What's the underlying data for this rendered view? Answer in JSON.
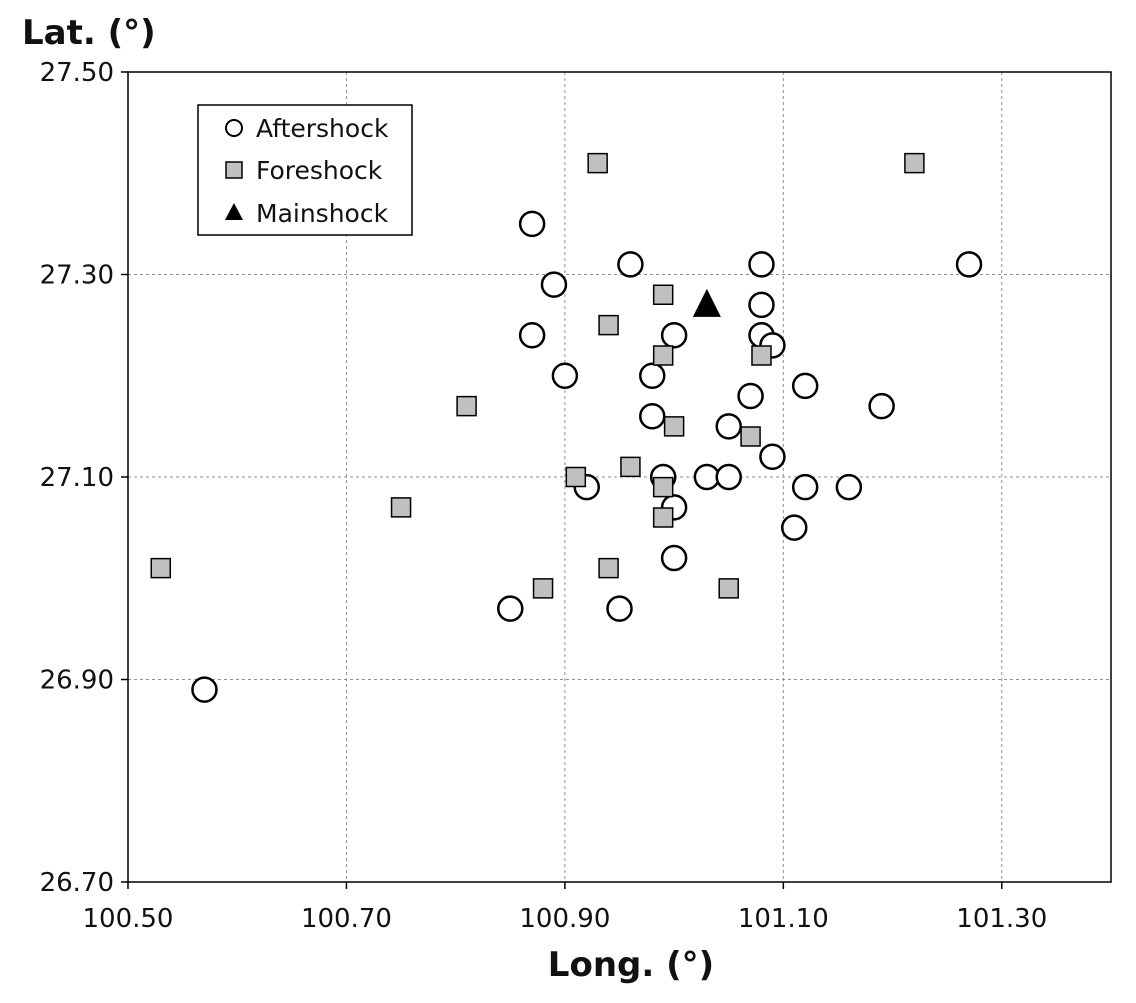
{
  "chart_data": {
    "type": "scatter",
    "xlabel": "Long. (°)",
    "ylabel": "Lat. (°)",
    "xlim": [
      100.5,
      101.4
    ],
    "ylim": [
      26.7,
      27.5
    ],
    "x_ticks": [
      "100.50",
      "100.70",
      "100.90",
      "101.10",
      "101.30"
    ],
    "y_ticks": [
      "27.50",
      "27.30",
      "27.10",
      "26.90",
      "26.70"
    ],
    "grid": true,
    "legend_position": "top-left",
    "series": [
      {
        "name": "Aftershock",
        "marker": "circle",
        "color": "#ffffff",
        "points": [
          [
            100.57,
            26.89
          ],
          [
            100.85,
            26.97
          ],
          [
            100.87,
            27.35
          ],
          [
            100.87,
            27.24
          ],
          [
            100.89,
            27.29
          ],
          [
            100.9,
            27.2
          ],
          [
            100.92,
            27.09
          ],
          [
            100.95,
            26.97
          ],
          [
            100.96,
            27.31
          ],
          [
            100.98,
            27.2
          ],
          [
            100.98,
            27.16
          ],
          [
            100.99,
            27.1
          ],
          [
            101.0,
            27.07
          ],
          [
            101.0,
            27.02
          ],
          [
            101.0,
            27.24
          ],
          [
            101.03,
            27.1
          ],
          [
            101.05,
            27.1
          ],
          [
            101.05,
            27.15
          ],
          [
            101.07,
            27.18
          ],
          [
            101.08,
            27.31
          ],
          [
            101.08,
            27.27
          ],
          [
            101.08,
            27.24
          ],
          [
            101.09,
            27.23
          ],
          [
            101.09,
            27.12
          ],
          [
            101.11,
            27.05
          ],
          [
            101.12,
            27.19
          ],
          [
            101.12,
            27.09
          ],
          [
            101.16,
            27.09
          ],
          [
            101.19,
            27.17
          ],
          [
            101.27,
            27.31
          ]
        ]
      },
      {
        "name": "Foreshock",
        "marker": "square",
        "color": "#c0c0c0",
        "points": [
          [
            100.53,
            27.01
          ],
          [
            100.75,
            27.07
          ],
          [
            100.81,
            27.17
          ],
          [
            100.88,
            26.99
          ],
          [
            100.91,
            27.1
          ],
          [
            100.93,
            27.41
          ],
          [
            100.94,
            27.25
          ],
          [
            100.94,
            27.01
          ],
          [
            100.96,
            27.11
          ],
          [
            100.99,
            27.28
          ],
          [
            100.99,
            27.22
          ],
          [
            100.99,
            27.09
          ],
          [
            100.99,
            27.06
          ],
          [
            101.0,
            27.15
          ],
          [
            101.05,
            26.99
          ],
          [
            101.07,
            27.14
          ],
          [
            101.08,
            27.22
          ],
          [
            101.22,
            27.41
          ]
        ]
      },
      {
        "name": "Mainshock",
        "marker": "triangle",
        "color": "#000000",
        "points": [
          [
            101.03,
            27.27
          ]
        ]
      }
    ]
  }
}
